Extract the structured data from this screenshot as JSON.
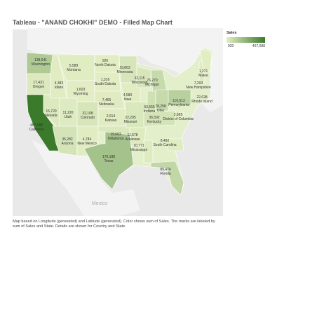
{
  "title": "Tableau - \"ANAND CHOKHI\" DEMO - Filled Map Chart",
  "legend": {
    "title": "Sales",
    "min": {
      "value": 920,
      "label": "920"
    },
    "max": {
      "value": 457688,
      "label": "457,688"
    }
  },
  "states": [
    {
      "name": "Washington",
      "sales": 138641,
      "label": "138,641"
    },
    {
      "name": "Oregon",
      "sales": 17431,
      "label": "17,431"
    },
    {
      "name": "California",
      "sales": 457688,
      "label": "457,688"
    },
    {
      "name": "Nevada",
      "sales": 16729,
      "label": "16,729"
    },
    {
      "name": "Idaho",
      "sales": 4382,
      "label": "4,382"
    },
    {
      "name": "Montana",
      "sales": 5589,
      "label": "5,589"
    },
    {
      "name": "Wyoming",
      "sales": 1603,
      "label": "1,603"
    },
    {
      "name": "Utah",
      "sales": 11220,
      "label": "11,220"
    },
    {
      "name": "Arizona",
      "sales": 35282,
      "label": "35,282"
    },
    {
      "name": "Colorado",
      "sales": 32108,
      "label": "32,108"
    },
    {
      "name": "New Mexico",
      "sales": 4784,
      "label": "4,784"
    },
    {
      "name": "North Dakota",
      "sales": 920,
      "label": "920"
    },
    {
      "name": "South Dakota",
      "sales": 1316,
      "label": "1,316"
    },
    {
      "name": "Nebraska",
      "sales": 7465,
      "label": "7,465"
    },
    {
      "name": "Kansas",
      "sales": 2914,
      "label": "2,914"
    },
    {
      "name": "Oklahoma",
      "sales": 19683,
      "label": "19,683"
    },
    {
      "name": "Texas",
      "sales": 170188,
      "label": "170,188"
    },
    {
      "name": "Minnesota",
      "sales": 29863,
      "label": "29,863"
    },
    {
      "name": "Iowa",
      "sales": 4580,
      "label": "4,580"
    },
    {
      "name": "Missouri",
      "sales": 22205,
      "label": "22,205"
    },
    {
      "name": "Arkansas",
      "sales": 11678,
      "label": "11,678"
    },
    {
      "name": "Mississippi",
      "sales": 10771,
      "label": "10,771"
    },
    {
      "name": "Wisconsin",
      "sales": 32115,
      "label": "32,115"
    },
    {
      "name": "Michigan",
      "sales": 76270,
      "label": "76,270"
    },
    {
      "name": "Indiana",
      "sales": 53555,
      "label": "53,555"
    },
    {
      "name": "Ohio",
      "sales": 78258,
      "label": "78,258"
    },
    {
      "name": "Kentucky",
      "sales": 36592,
      "label": "36,592"
    },
    {
      "name": "Pennsylvania",
      "sales": 116512,
      "label": "116,512"
    },
    {
      "name": "New Hampshire",
      "sales": 7293,
      "label": "7,293"
    },
    {
      "name": "Maine",
      "sales": 1271,
      "label": "1,271"
    },
    {
      "name": "Rhode Island",
      "sales": 22628,
      "label": "22,628"
    },
    {
      "name": "District of Columbia",
      "sales": 2865,
      "label": "2,865"
    },
    {
      "name": "South Carolina",
      "sales": 8482,
      "label": "8,482"
    },
    {
      "name": "Florida",
      "sales": 89474,
      "label": "89,474"
    }
  ],
  "basemap_labels": [
    "Mexico"
  ],
  "caption": "Map based on Longitude (generated) and Latitude (generated).  Color shows sum of Sales.  The marks are labeled by sum of Sales and State.  Details are shown for Country and State."
}
